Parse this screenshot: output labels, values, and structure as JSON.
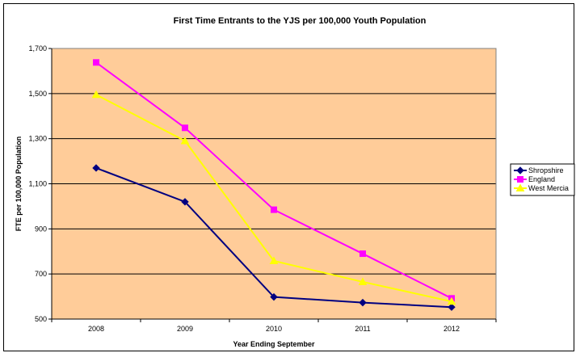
{
  "chart_data": {
    "type": "line",
    "title": "First Time Entrants to the YJS per 100,000 Youth Population",
    "xlabel": "Year Ending September",
    "ylabel": "FTE per 100,000 Population",
    "categories": [
      "2008",
      "2009",
      "2010",
      "2011",
      "2012"
    ],
    "ylim": [
      500,
      1700
    ],
    "yticks": [
      500,
      700,
      900,
      1100,
      1300,
      1500,
      1700
    ],
    "ytick_labels": [
      "500",
      "700",
      "900",
      "1,100",
      "1,300",
      "1,500",
      "1,700"
    ],
    "grid": true,
    "plot_background": "#FFCC99",
    "legend": "right",
    "series": [
      {
        "name": "Shropshire",
        "color": "#000080",
        "marker": "diamond",
        "values": [
          1170,
          1020,
          598,
          573,
          553
        ]
      },
      {
        "name": "England",
        "color": "#FF00FF",
        "marker": "square",
        "values": [
          1638,
          1348,
          985,
          790,
          592
        ]
      },
      {
        "name": "West Mercia",
        "color": "#FFFF00",
        "marker": "triangle",
        "values": [
          1495,
          1290,
          758,
          665,
          578
        ]
      }
    ]
  }
}
